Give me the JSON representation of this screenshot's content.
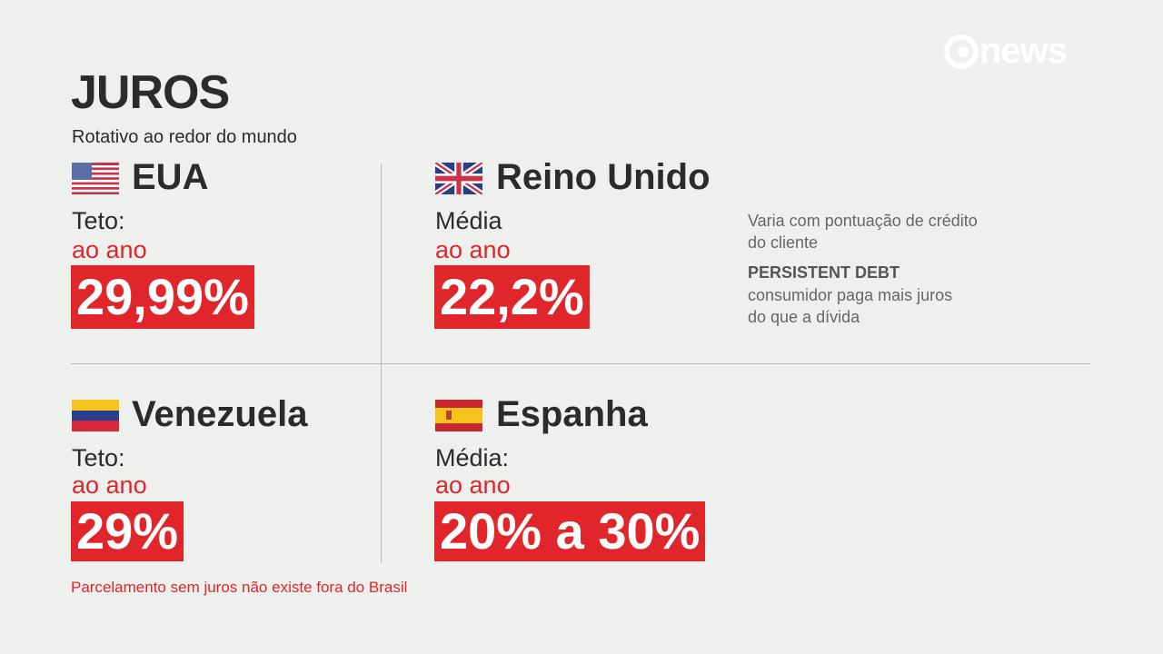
{
  "logo": {
    "text": "news"
  },
  "header": {
    "title": "JUROS",
    "subtitle": "Rotativo ao redor do mundo"
  },
  "panels": [
    {
      "country": "EUA",
      "label": "Teto:",
      "period": "ao ano",
      "rate": "29,99%"
    },
    {
      "country": "Reino Unido",
      "label": "Média",
      "period": "ao ano",
      "rate": "22,2%",
      "notes": {
        "line1": "Varia com pontuação de crédito",
        "line2": "do cliente",
        "heading": "PERSISTENT DEBT",
        "line3": "consumidor paga mais juros",
        "line4": "do que a dívida"
      }
    },
    {
      "country": "Venezuela",
      "label": "Teto:",
      "period": "ao ano",
      "rate": "29%"
    },
    {
      "country": "Espanha",
      "label": "Média:",
      "period": "ao ano",
      "rate": "20% a 30%"
    }
  ],
  "footnote": "Parcelamento sem juros não existe fora do Brasil"
}
